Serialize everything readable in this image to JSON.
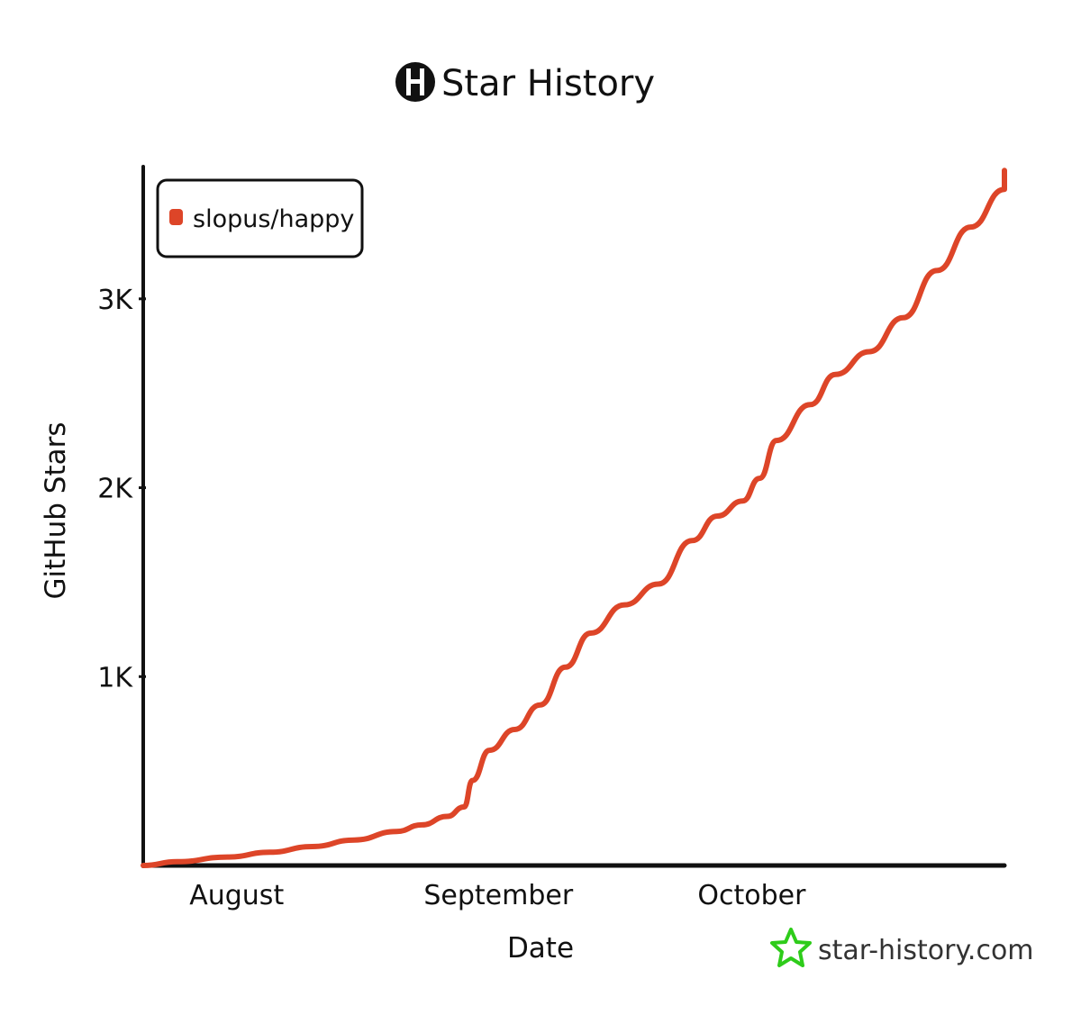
{
  "header": {
    "title": "Star History",
    "logo_icon": "star-history-logo-icon"
  },
  "watermark": {
    "text": "star-history.com",
    "icon": "star-icon",
    "icon_color": "#2ecc1a"
  },
  "colors": {
    "series": "#dd4528",
    "axis": "#111111"
  },
  "chart_data": {
    "type": "line",
    "title": "Star History",
    "xlabel": "Date",
    "ylabel": "GitHub Stars",
    "x_axis_kind": "date",
    "xlim": [
      "2025-07-22",
      "2025-11-01"
    ],
    "ylim": [
      0,
      3700
    ],
    "x_ticks": [
      {
        "label": "August",
        "date": "2025-08-01"
      },
      {
        "label": "September",
        "date": "2025-09-01"
      },
      {
        "label": "October",
        "date": "2025-10-01"
      }
    ],
    "y_ticks": [
      {
        "label": "1K",
        "value": 1000
      },
      {
        "label": "2K",
        "value": 2000
      },
      {
        "label": "3K",
        "value": 3000
      }
    ],
    "legend": {
      "placement": "top-left"
    },
    "series": [
      {
        "name": "slopus/happy",
        "color": "#dd4528",
        "points": [
          {
            "date": "2025-07-22",
            "stars": 0
          },
          {
            "date": "2025-07-26",
            "stars": 20
          },
          {
            "date": "2025-08-01",
            "stars": 45
          },
          {
            "date": "2025-08-06",
            "stars": 70
          },
          {
            "date": "2025-08-11",
            "stars": 100
          },
          {
            "date": "2025-08-16",
            "stars": 135
          },
          {
            "date": "2025-08-21",
            "stars": 180
          },
          {
            "date": "2025-08-24",
            "stars": 215
          },
          {
            "date": "2025-08-27",
            "stars": 260
          },
          {
            "date": "2025-08-29",
            "stars": 310
          },
          {
            "date": "2025-08-30",
            "stars": 450
          },
          {
            "date": "2025-09-01",
            "stars": 610
          },
          {
            "date": "2025-09-04",
            "stars": 720
          },
          {
            "date": "2025-09-07",
            "stars": 850
          },
          {
            "date": "2025-09-10",
            "stars": 1050
          },
          {
            "date": "2025-09-13",
            "stars": 1230
          },
          {
            "date": "2025-09-17",
            "stars": 1380
          },
          {
            "date": "2025-09-21",
            "stars": 1490
          },
          {
            "date": "2025-09-25",
            "stars": 1720
          },
          {
            "date": "2025-09-28",
            "stars": 1850
          },
          {
            "date": "2025-10-01",
            "stars": 1930
          },
          {
            "date": "2025-10:03",
            "stars": 2050
          },
          {
            "date": "2025-10-05",
            "stars": 2250
          },
          {
            "date": "2025-10-09",
            "stars": 2440
          },
          {
            "date": "2025-10-12",
            "stars": 2600
          },
          {
            "date": "2025-10-16",
            "stars": 2720
          },
          {
            "date": "2025-10-20",
            "stars": 2900
          },
          {
            "date": "2025-10-24",
            "stars": 3150
          },
          {
            "date": "2025-10-28",
            "stars": 3380
          },
          {
            "date": "2025-11-01",
            "stars": 3580
          },
          {
            "date": "2025-11-05",
            "stars": 3680
          }
        ]
      }
    ]
  }
}
